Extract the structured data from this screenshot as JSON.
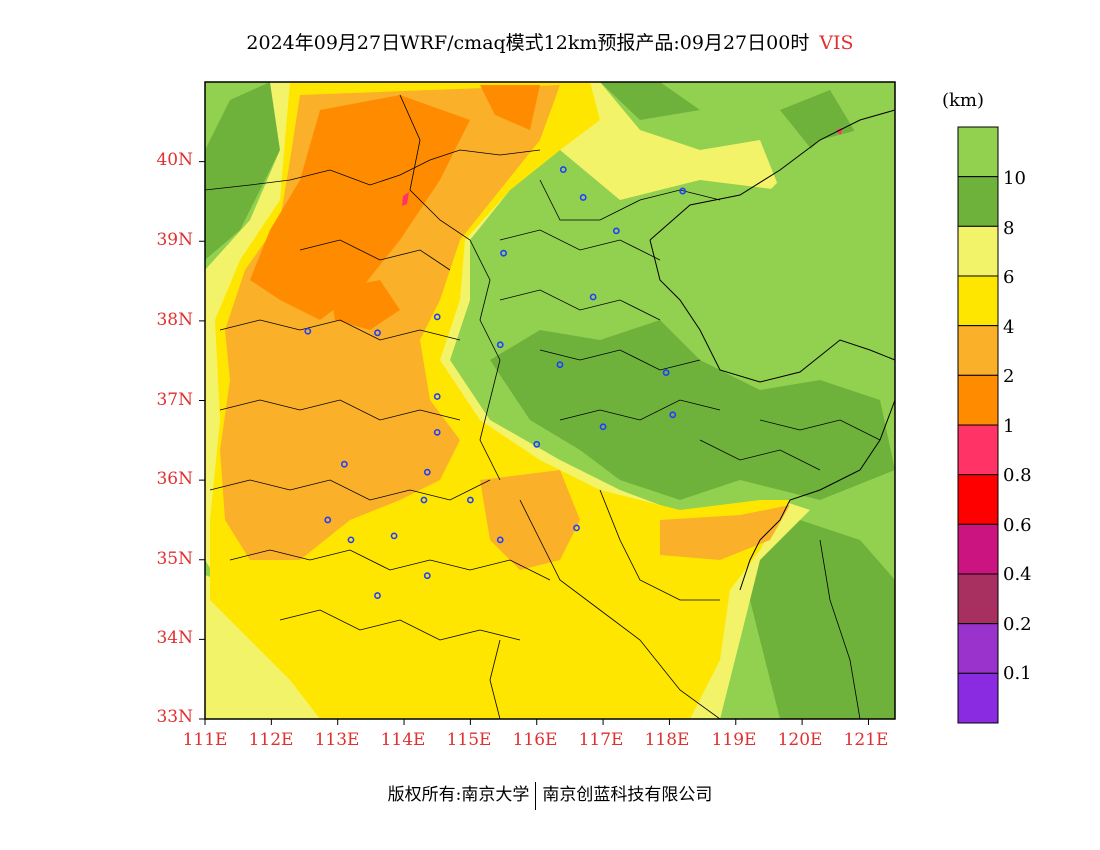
{
  "title": {
    "main": "2024年09月27日WRF/cmaq模式12km预报产品:09月27日00时",
    "variable": "VIS"
  },
  "map": {
    "lat_labels": [
      "40N",
      "39N",
      "38N",
      "37N",
      "36N",
      "35N",
      "34N",
      "33N"
    ],
    "lon_labels": [
      "111E",
      "112E",
      "113E",
      "114E",
      "115E",
      "116E",
      "117E",
      "118E",
      "119E",
      "120E",
      "121E"
    ],
    "extent": {
      "lon_min": 111,
      "lon_max": 121.4,
      "lat_min": 33,
      "lat_max": 41
    },
    "city_markers": [
      [
        116.4,
        39.9
      ],
      [
        116.7,
        39.55
      ],
      [
        117.2,
        39.13
      ],
      [
        118.2,
        39.63
      ],
      [
        115.5,
        38.85
      ],
      [
        116.85,
        38.3
      ],
      [
        112.55,
        37.87
      ],
      [
        113.6,
        37.85
      ],
      [
        114.5,
        38.05
      ],
      [
        115.45,
        37.7
      ],
      [
        116.35,
        37.45
      ],
      [
        117.95,
        37.35
      ],
      [
        114.5,
        37.05
      ],
      [
        118.05,
        36.82
      ],
      [
        117.0,
        36.67
      ],
      [
        114.5,
        36.6
      ],
      [
        116.0,
        36.45
      ],
      [
        113.1,
        36.2
      ],
      [
        114.35,
        36.1
      ],
      [
        115.0,
        35.75
      ],
      [
        114.3,
        35.75
      ],
      [
        112.85,
        35.5
      ],
      [
        113.2,
        35.25
      ],
      [
        113.85,
        35.3
      ],
      [
        115.45,
        35.25
      ],
      [
        116.6,
        35.4
      ],
      [
        114.35,
        34.8
      ],
      [
        113.6,
        34.55
      ]
    ]
  },
  "legend": {
    "unit": "(km)",
    "labels": [
      "10",
      "8",
      "6",
      "4",
      "2",
      "1",
      "0.8",
      "0.6",
      "0.4",
      "0.2",
      "0.1"
    ],
    "colors": [
      "#92d050",
      "#6eb23c",
      "#f3f36a",
      "#ffe600",
      "#fbb02a",
      "#ff8c00",
      "#ff3366",
      "#ff0000",
      "#cc1480",
      "#a83060",
      "#9933cc",
      "#8a2be2"
    ]
  },
  "footer": {
    "left": "版权所有:南京大学",
    "right": "南京创蓝科技有限公司"
  }
}
